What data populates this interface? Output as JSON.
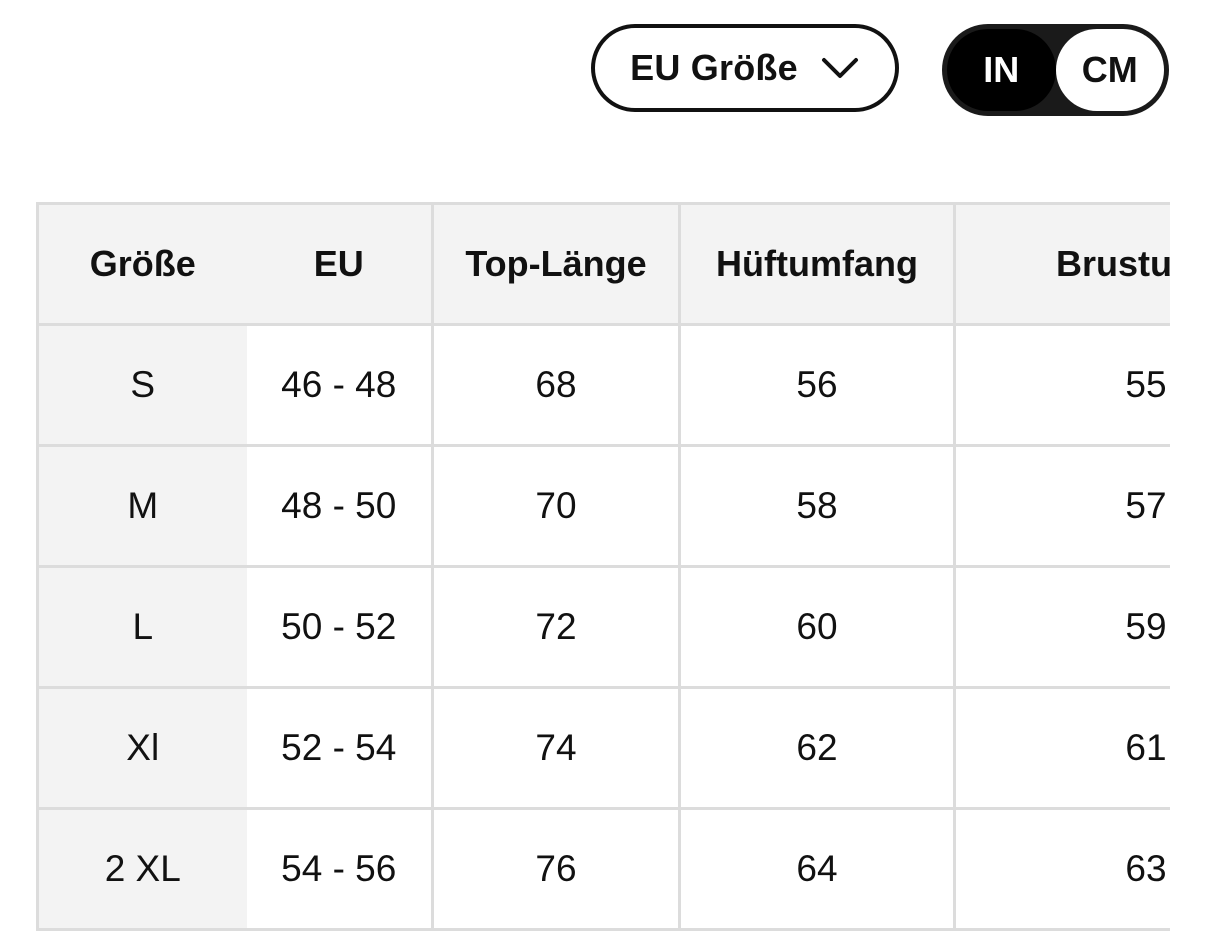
{
  "controls": {
    "size_system_label": "EU Größe",
    "unit_toggle": {
      "options": [
        "IN",
        "CM"
      ],
      "selected": "IN"
    }
  },
  "table": {
    "headers": [
      "Größe",
      "EU",
      "Top-Länge",
      "Hüftumfang",
      "Brustumfa"
    ],
    "rows": [
      [
        "S",
        "46 - 48",
        "68",
        "56",
        "55"
      ],
      [
        "M",
        "48 - 50",
        "70",
        "58",
        "57"
      ],
      [
        "L",
        "50 - 52",
        "72",
        "60",
        "59"
      ],
      [
        "Xl",
        "52 - 54",
        "74",
        "62",
        "61"
      ],
      [
        "2 XL",
        "54 - 56",
        "76",
        "64",
        "63"
      ]
    ]
  },
  "colors": {
    "header_bg": "#f3f3f3",
    "border": "#dcdcdc",
    "toggle_bg": "#1a1a1a",
    "toggle_active": "#000000"
  },
  "icons": {
    "dropdown": "chevron-down-icon"
  }
}
